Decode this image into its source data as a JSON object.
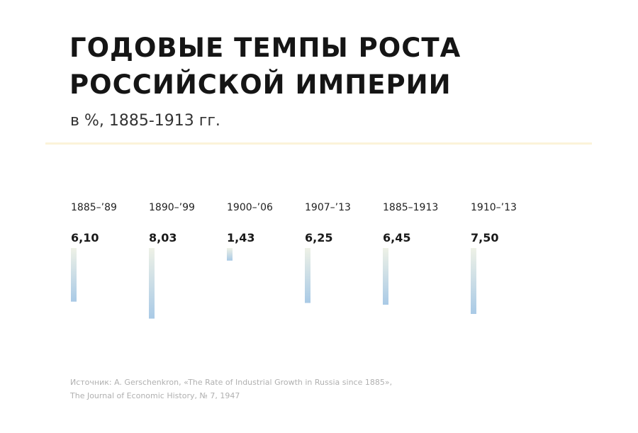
{
  "title_lines": [
    "ГОДОВЫЕ ТЕМПЫ РОСТА",
    "РОССИЙСКОЙ ИМПЕРИИ"
  ],
  "subtitle": "в %, 1885-1913 гг.",
  "colors": {
    "divider": "#fbf3d9",
    "bar_top": "#eef1e6",
    "bar_bottom": "#a9cae6",
    "text": "#1a1a1a",
    "source_text": "#b0b0b0"
  },
  "chart_data": {
    "type": "bar",
    "orientation": "vertical-hanging",
    "categories": [
      "1885–’89",
      "1890–’99",
      "1900–’06",
      "1907–’13",
      "1885–1913",
      "1910–’13"
    ],
    "values": [
      6.1,
      8.03,
      1.43,
      6.25,
      6.45,
      7.5
    ],
    "value_labels": [
      "6,10",
      "8,03",
      "1,43",
      "6,25",
      "6,45",
      "7,50"
    ],
    "unit": "%",
    "grid": false,
    "legend": "none"
  },
  "source": {
    "line1": "Источник: A. Gerschenkron, «The Rate of Industrial Growth in Russia since 1885»,",
    "line2": "The Journal of Economic History, № 7, 1947"
  }
}
